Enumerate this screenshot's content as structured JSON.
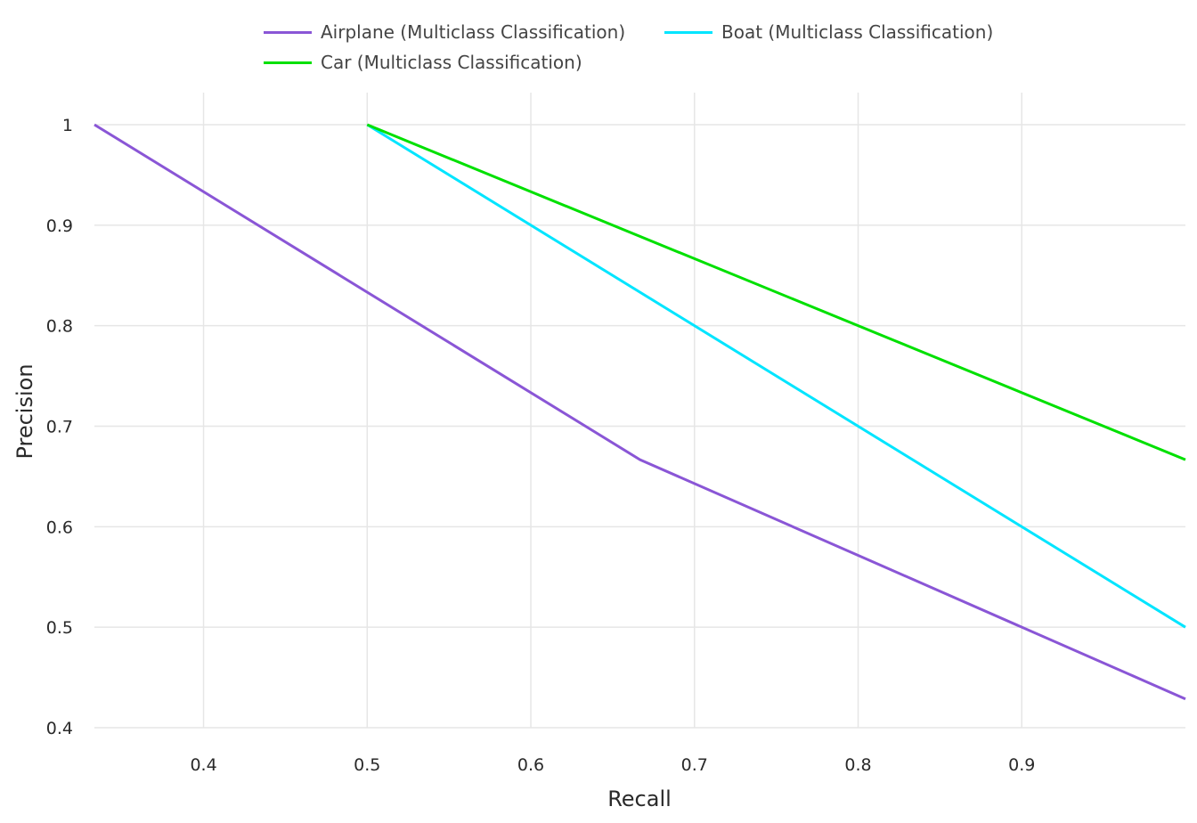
{
  "chart_data": {
    "type": "line",
    "title": "",
    "xlabel": "Recall",
    "ylabel": "Precision",
    "xlim": [
      0.3333,
      1.0
    ],
    "ylim": [
      0.4,
      1.0
    ],
    "grid": true,
    "legend_position": "top",
    "xticks": [
      "0.4",
      "0.5",
      "0.6",
      "0.7",
      "0.8",
      "0.9"
    ],
    "xtick_values": [
      0.4,
      0.5,
      0.6,
      0.7,
      0.8,
      0.9
    ],
    "yticks": [
      "0.4",
      "0.5",
      "0.6",
      "0.7",
      "0.8",
      "0.9",
      "1"
    ],
    "ytick_values": [
      0.4,
      0.5,
      0.6,
      0.7,
      0.8,
      0.9,
      1.0
    ],
    "series": [
      {
        "name": "Airplane (Multiclass Classification)",
        "color": "#8a56d6",
        "x": [
          0.3333,
          0.6667,
          1.0
        ],
        "y": [
          1.0,
          0.6667,
          0.4286
        ]
      },
      {
        "name": "Boat (Multiclass Classification)",
        "color": "#00e5ff",
        "x": [
          0.5,
          1.0
        ],
        "y": [
          1.0,
          0.5
        ]
      },
      {
        "name": "Car (Multiclass Classification)",
        "color": "#00e000",
        "x": [
          0.5,
          1.0
        ],
        "y": [
          1.0,
          0.6667
        ]
      }
    ]
  }
}
